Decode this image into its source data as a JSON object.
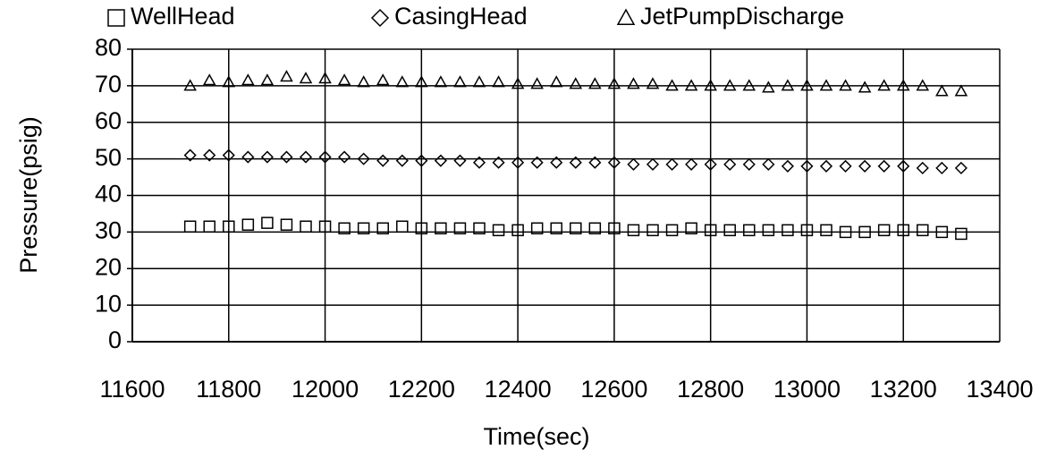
{
  "chart_data": {
    "type": "scatter",
    "xlabel": "Time(sec)",
    "ylabel": "Pressure(psig)",
    "x": [
      11720,
      11760,
      11800,
      11840,
      11880,
      11920,
      11960,
      12000,
      12040,
      12080,
      12120,
      12160,
      12200,
      12240,
      12280,
      12320,
      12360,
      12400,
      12440,
      12480,
      12520,
      12560,
      12600,
      12640,
      12680,
      12720,
      12760,
      12800,
      12840,
      12880,
      12920,
      12960,
      13000,
      13040,
      13080,
      13120,
      13160,
      13200,
      13240,
      13280,
      13320
    ],
    "series": [
      {
        "name": "WellHead",
        "marker": "square",
        "color": "#000000",
        "values": [
          31.5,
          31.5,
          31.5,
          32,
          32.5,
          32,
          31.5,
          31.5,
          31,
          31,
          31,
          31.5,
          31,
          31,
          31,
          31,
          30.5,
          30.5,
          31,
          31,
          31,
          31,
          31,
          30.5,
          30.5,
          30.5,
          31,
          30.5,
          30.5,
          30.5,
          30.5,
          30.5,
          30.5,
          30.5,
          30,
          30,
          30.5,
          30.5,
          30.5,
          30,
          29.5
        ]
      },
      {
        "name": "CasingHead",
        "marker": "diamond",
        "color": "#000000",
        "values": [
          51,
          51,
          51,
          50.5,
          50.5,
          50.5,
          50.5,
          50.5,
          50.5,
          50,
          49.5,
          49.5,
          49.5,
          49.5,
          49.5,
          49,
          49,
          49,
          49,
          49,
          49,
          49,
          49,
          48.5,
          48.5,
          48.5,
          48.5,
          48.5,
          48.5,
          48.5,
          48.5,
          48,
          48,
          48,
          48,
          48,
          48,
          48,
          47.5,
          47.5,
          47.5
        ]
      },
      {
        "name": "JetPumpDischarge",
        "marker": "triangle",
        "color": "#000000",
        "values": [
          70,
          71.5,
          71,
          71.5,
          71.5,
          72.5,
          72,
          72,
          71.5,
          71,
          71.5,
          71,
          71,
          71,
          71,
          71,
          71,
          70.5,
          70.5,
          71,
          70.5,
          70.5,
          70.5,
          70.5,
          70.5,
          70,
          70,
          70,
          70,
          70,
          69.5,
          70,
          70,
          70,
          70,
          69.5,
          70,
          70,
          70,
          68.5,
          68.5
        ]
      }
    ],
    "xlim": [
      11600,
      13400
    ],
    "xticks": [
      11600,
      11800,
      12000,
      12200,
      12400,
      12600,
      12800,
      13000,
      13200,
      13400
    ],
    "ylim": [
      0,
      80
    ],
    "yticks": [
      0,
      10,
      20,
      30,
      40,
      50,
      60,
      70,
      80
    ],
    "grid": true,
    "legend": "top"
  }
}
